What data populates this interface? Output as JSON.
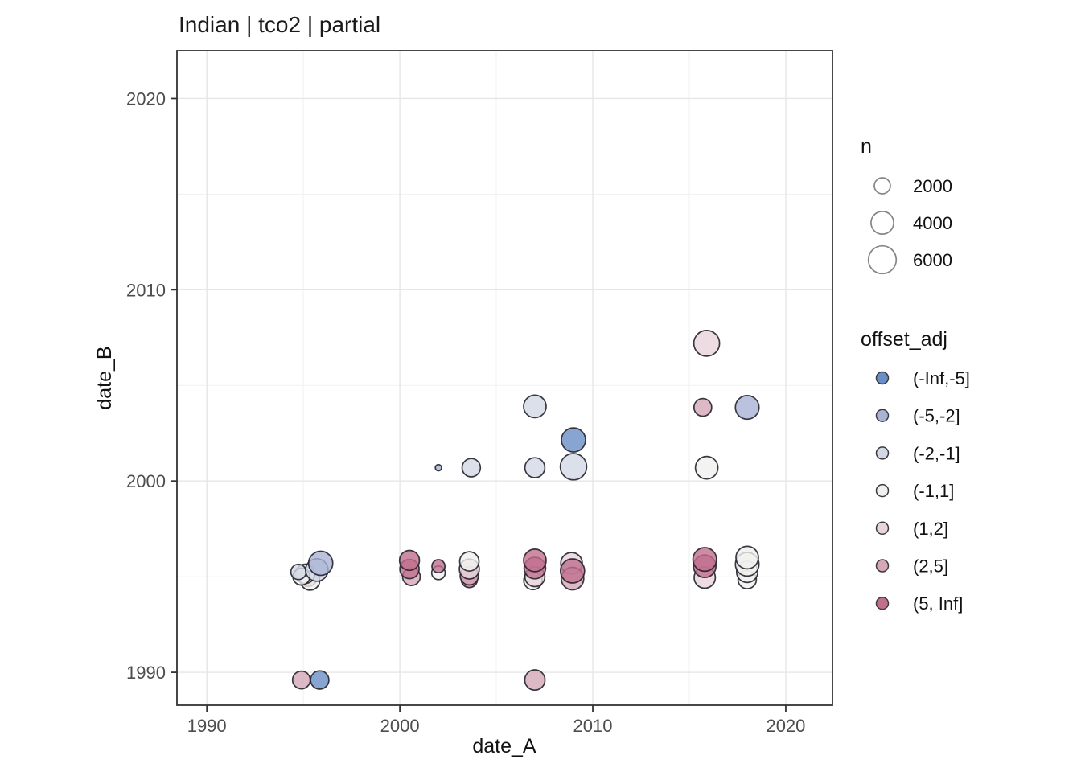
{
  "title": "Indian | tco2 | partial",
  "colors": {
    "panel_background": "#ffffff",
    "panel_border": "#333333",
    "grid_major": "#e6e6e6",
    "grid_minor": "#f1f1f1",
    "tick_text": "#4d4d4d",
    "point_stroke": "#23232d",
    "size_key_stroke": "#858585"
  },
  "chart_data": {
    "type": "scatter",
    "title": "Indian | tco2 | partial",
    "xlabel": "date_A",
    "ylabel": "date_B",
    "xlim": [
      1988.45,
      2022.42
    ],
    "ylim": [
      1988.28,
      2022.5
    ],
    "x_ticks": [
      1990,
      2000,
      2010,
      2020
    ],
    "y_ticks": [
      1990,
      2000,
      2010,
      2020
    ],
    "x_minor_ticks": [
      1995,
      2005,
      2015
    ],
    "y_minor_ticks": [
      1995,
      2005,
      2015
    ],
    "grid": true,
    "legend_position": "right",
    "size_legend": {
      "title": "n",
      "values": [
        "2000",
        "4000",
        "6000"
      ],
      "n_values": [
        2000,
        4000,
        6000
      ]
    },
    "color_legend": {
      "title": "offset_adj",
      "bins": [
        {
          "label": "(-Inf,-5]",
          "color": "#6a8ec6"
        },
        {
          "label": "(-5,-2]",
          "color": "#a9b3d4"
        },
        {
          "label": "(-2,-1]",
          "color": "#d3d8e6"
        },
        {
          "label": "(-1,1]",
          "color": "#f0f0ee"
        },
        {
          "label": "(1,2]",
          "color": "#e8d5db"
        },
        {
          "label": "(2,5]",
          "color": "#d5a8b7"
        },
        {
          "label": "(5, Inf]",
          "color": "#c06f8d"
        }
      ]
    },
    "points": [
      {
        "date_A": 1995.25,
        "date_B": 1994.95,
        "n": 2400,
        "offset_adj": "(2,5]"
      },
      {
        "date_A": 1995.35,
        "date_B": 1994.8,
        "n": 2900,
        "offset_adj": "(-1,1]"
      },
      {
        "date_A": 1995.1,
        "date_B": 1995.15,
        "n": 2900,
        "offset_adj": "(-1,1]"
      },
      {
        "date_A": 1994.9,
        "date_B": 1995.0,
        "n": 2200,
        "offset_adj": "(-1,1]"
      },
      {
        "date_A": 1994.75,
        "date_B": 1995.25,
        "n": 1800,
        "offset_adj": "(-2,-1]"
      },
      {
        "date_A": 1995.7,
        "date_B": 1995.35,
        "n": 3900,
        "offset_adj": "(-2,-1]"
      },
      {
        "date_A": 1995.9,
        "date_B": 1995.7,
        "n": 4500,
        "offset_adj": "(-5,-2]"
      },
      {
        "date_A": 1994.9,
        "date_B": 1989.6,
        "n": 2400,
        "offset_adj": "(2,5]"
      },
      {
        "date_A": 1995.85,
        "date_B": 1989.6,
        "n": 2600,
        "offset_adj": "(-Inf,-5]"
      },
      {
        "date_A": 2000.6,
        "date_B": 1995.0,
        "n": 2400,
        "offset_adj": "(2,5]"
      },
      {
        "date_A": 2000.5,
        "date_B": 1995.4,
        "n": 2900,
        "offset_adj": "(5, Inf]"
      },
      {
        "date_A": 2000.5,
        "date_B": 1995.85,
        "n": 3100,
        "offset_adj": "(5, Inf]"
      },
      {
        "date_A": 2002.0,
        "date_B": 1995.2,
        "n": 1400,
        "offset_adj": "(-1,1]"
      },
      {
        "date_A": 2002.0,
        "date_B": 1995.55,
        "n": 1300,
        "offset_adj": "(5, Inf]"
      },
      {
        "date_A": 2003.6,
        "date_B": 1994.85,
        "n": 2000,
        "offset_adj": "(5, Inf]"
      },
      {
        "date_A": 2003.6,
        "date_B": 1995.05,
        "n": 2600,
        "offset_adj": "(2,5]"
      },
      {
        "date_A": 2003.6,
        "date_B": 1995.4,
        "n": 3100,
        "offset_adj": "(1,2]"
      },
      {
        "date_A": 2003.6,
        "date_B": 1995.8,
        "n": 2900,
        "offset_adj": "(-1,1]"
      },
      {
        "date_A": 2002.0,
        "date_B": 2000.7,
        "n": 300,
        "offset_adj": "(-5,-2]"
      },
      {
        "date_A": 2003.7,
        "date_B": 2000.7,
        "n": 2600,
        "offset_adj": "(-2,-1]"
      },
      {
        "date_A": 2007.0,
        "date_B": 2003.9,
        "n": 3900,
        "offset_adj": "(-2,-1]"
      },
      {
        "date_A": 2007.0,
        "date_B": 2000.7,
        "n": 3100,
        "offset_adj": "(-2,-1]"
      },
      {
        "date_A": 2009.0,
        "date_B": 2002.15,
        "n": 4500,
        "offset_adj": "(-Inf,-5]"
      },
      {
        "date_A": 2009.0,
        "date_B": 2000.75,
        "n": 5400,
        "offset_adj": "(-2,-1]"
      },
      {
        "date_A": 2006.9,
        "date_B": 1994.8,
        "n": 2600,
        "offset_adj": "(-1,1]"
      },
      {
        "date_A": 2007.0,
        "date_B": 1995.0,
        "n": 3100,
        "offset_adj": "(1,2]"
      },
      {
        "date_A": 2007.0,
        "date_B": 1995.45,
        "n": 3600,
        "offset_adj": "(5, Inf]"
      },
      {
        "date_A": 2007.0,
        "date_B": 1995.85,
        "n": 3900,
        "offset_adj": "(5, Inf]"
      },
      {
        "date_A": 2008.9,
        "date_B": 1995.7,
        "n": 3600,
        "offset_adj": "(1,2]"
      },
      {
        "date_A": 2008.95,
        "date_B": 1994.9,
        "n": 3900,
        "offset_adj": "(2,5]"
      },
      {
        "date_A": 2008.95,
        "date_B": 1995.3,
        "n": 4500,
        "offset_adj": "(5, Inf]"
      },
      {
        "date_A": 2007.0,
        "date_B": 1989.6,
        "n": 3200,
        "offset_adj": "(2,5]"
      },
      {
        "date_A": 2015.9,
        "date_B": 2007.2,
        "n": 5100,
        "offset_adj": "(1,2]"
      },
      {
        "date_A": 2015.7,
        "date_B": 2003.85,
        "n": 2400,
        "offset_adj": "(2,5]"
      },
      {
        "date_A": 2018.0,
        "date_B": 2003.85,
        "n": 4300,
        "offset_adj": "(-5,-2]"
      },
      {
        "date_A": 2015.9,
        "date_B": 2000.7,
        "n": 3900,
        "offset_adj": "(-1,1]"
      },
      {
        "date_A": 2015.8,
        "date_B": 1994.95,
        "n": 3500,
        "offset_adj": "(1,2]"
      },
      {
        "date_A": 2015.8,
        "date_B": 1995.55,
        "n": 3900,
        "offset_adj": "(5, Inf]"
      },
      {
        "date_A": 2015.8,
        "date_B": 1995.9,
        "n": 4300,
        "offset_adj": "(5, Inf]"
      },
      {
        "date_A": 2018.0,
        "date_B": 1994.85,
        "n": 2600,
        "offset_adj": "(-1,1]"
      },
      {
        "date_A": 2018.0,
        "date_B": 1995.25,
        "n": 3500,
        "offset_adj": "(-1,1]"
      },
      {
        "date_A": 2018.0,
        "date_B": 1995.65,
        "n": 4300,
        "offset_adj": "(-1,1]"
      },
      {
        "date_A": 2018.0,
        "date_B": 1996.0,
        "n": 3900,
        "offset_adj": "(-1,1]"
      }
    ]
  }
}
